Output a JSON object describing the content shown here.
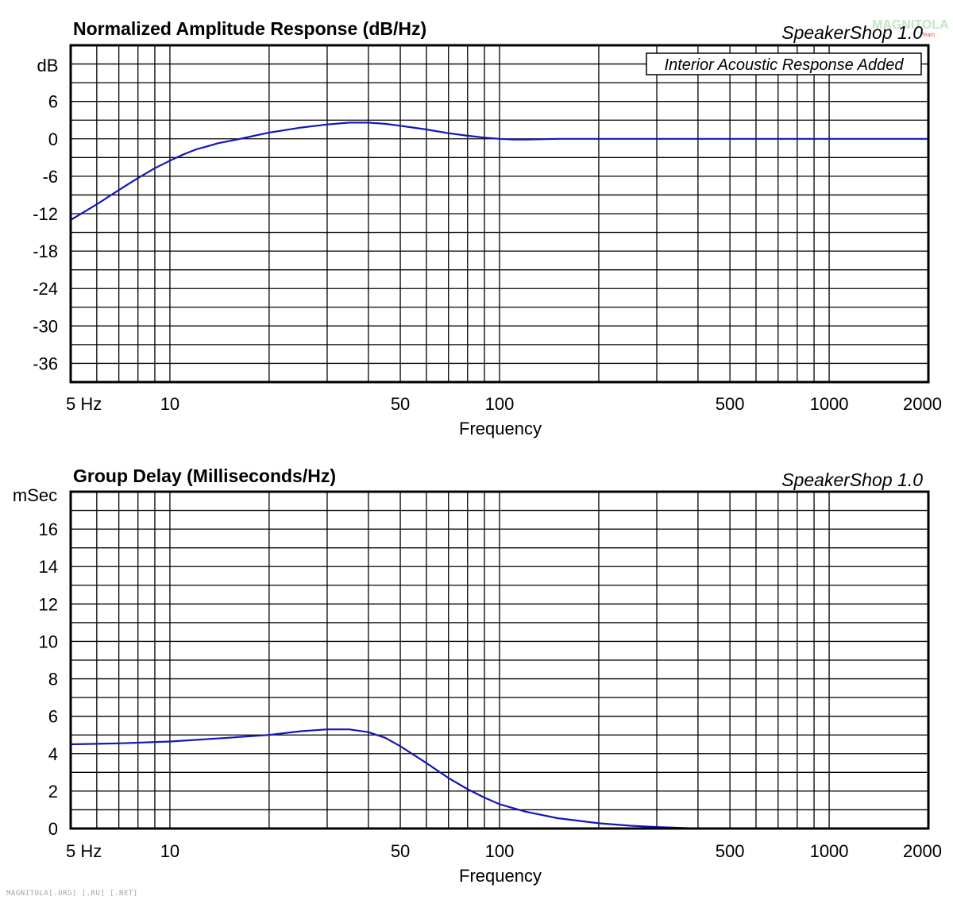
{
  "watermark": {
    "main": "MAGNITOLA",
    "sub": "Team"
  },
  "footer": "MAGNITOLA[.ORG] [.RU] [.NET]",
  "chart_data": [
    {
      "type": "line",
      "title": "Normalized Amplitude Response (dB/Hz)",
      "brand": "SpeakerShop 1.0",
      "annotation": "Interior Acoustic Response Added",
      "xlabel": "Frequency",
      "ylabel": "dB",
      "xscale": "log",
      "xlim": [
        5,
        2000
      ],
      "ylim": [
        -39,
        15
      ],
      "x_tick_labels": [
        {
          "value": 5,
          "label": "5  Hz"
        },
        {
          "value": 10,
          "label": "10"
        },
        {
          "value": 50,
          "label": "50"
        },
        {
          "value": 100,
          "label": "100"
        },
        {
          "value": 500,
          "label": "500"
        },
        {
          "value": 1000,
          "label": "1000"
        },
        {
          "value": 2000,
          "label": "2000"
        }
      ],
      "y_tick_labels": [
        {
          "value": 6,
          "label": "6"
        },
        {
          "value": 0,
          "label": "0"
        },
        {
          "value": -6,
          "label": "-6"
        },
        {
          "value": -12,
          "label": "-12"
        },
        {
          "value": -18,
          "label": "-18"
        },
        {
          "value": -24,
          "label": "-24"
        },
        {
          "value": -30,
          "label": "-30"
        },
        {
          "value": -36,
          "label": "-36"
        }
      ],
      "grid": true,
      "line_color": "#1515b8",
      "series": [
        {
          "x": [
            5,
            6,
            7,
            8,
            9,
            10,
            11,
            12,
            13,
            14,
            16,
            18,
            20,
            25,
            30,
            35,
            40,
            45,
            50,
            60,
            70,
            80,
            90,
            100,
            110,
            120,
            150,
            200,
            500,
            1000,
            2000
          ],
          "values": [
            -13,
            -10.5,
            -8.2,
            -6.3,
            -4.7,
            -3.5,
            -2.5,
            -1.7,
            -1.2,
            -0.7,
            -0.1,
            0.5,
            1.0,
            1.8,
            2.3,
            2.6,
            2.6,
            2.4,
            2.1,
            1.5,
            0.9,
            0.5,
            0.2,
            0.0,
            -0.1,
            -0.1,
            0.0,
            0.0,
            0.0,
            0.0,
            0.0
          ]
        }
      ]
    },
    {
      "type": "line",
      "title": "Group Delay (Milliseconds/Hz)",
      "brand": "SpeakerShop 1.0",
      "xlabel": "Frequency",
      "ylabel": "mSec",
      "xscale": "log",
      "xlim": [
        5,
        2000
      ],
      "ylim": [
        0,
        18
      ],
      "x_tick_labels": [
        {
          "value": 5,
          "label": "5  Hz"
        },
        {
          "value": 10,
          "label": "10"
        },
        {
          "value": 50,
          "label": "50"
        },
        {
          "value": 100,
          "label": "100"
        },
        {
          "value": 500,
          "label": "500"
        },
        {
          "value": 1000,
          "label": "1000"
        },
        {
          "value": 2000,
          "label": "2000"
        }
      ],
      "y_tick_labels": [
        {
          "value": 16,
          "label": "16"
        },
        {
          "value": 14,
          "label": "14"
        },
        {
          "value": 12,
          "label": "12"
        },
        {
          "value": 10,
          "label": "10"
        },
        {
          "value": 8,
          "label": "8"
        },
        {
          "value": 6,
          "label": "6"
        },
        {
          "value": 4,
          "label": "4"
        },
        {
          "value": 2,
          "label": "2"
        },
        {
          "value": 0,
          "label": "0"
        }
      ],
      "grid": true,
      "line_color": "#1515b8",
      "series": [
        {
          "x": [
            5,
            7,
            10,
            15,
            20,
            25,
            30,
            35,
            40,
            45,
            50,
            60,
            70,
            80,
            90,
            100,
            120,
            150,
            200,
            250,
            300,
            400
          ],
          "values": [
            4.5,
            4.55,
            4.65,
            4.85,
            5.0,
            5.2,
            5.3,
            5.3,
            5.15,
            4.85,
            4.4,
            3.5,
            2.7,
            2.1,
            1.65,
            1.3,
            0.9,
            0.55,
            0.28,
            0.15,
            0.08,
            0.0
          ]
        }
      ]
    }
  ]
}
